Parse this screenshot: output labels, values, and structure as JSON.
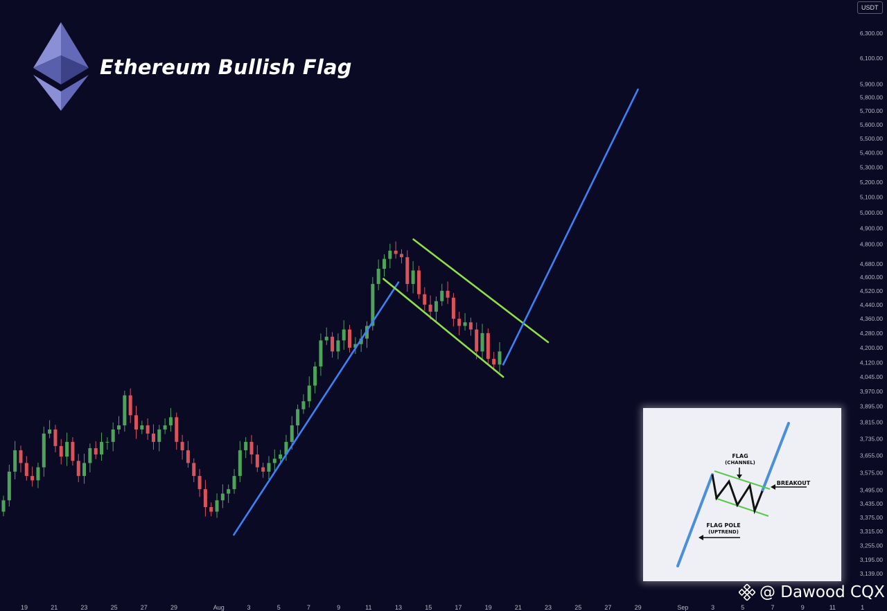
{
  "title": "Ethereum Bullish Flag",
  "currency": "USDT",
  "watermark": "@ Dawood CQX",
  "colors": {
    "background": "#0b0a24",
    "bull_candle": "#4ea35a",
    "bear_candle": "#d9535a",
    "flag_pole": "#3b82f6",
    "flag_channel": "#8ee04a"
  },
  "icons": {
    "logo": "ethereum-logo-icon",
    "watermark": "binance-logo-icon"
  },
  "inset": {
    "flag_label": "FLAG",
    "channel_label": "(CHANNEL)",
    "breakout_label": "BREAKOUT",
    "pole_label": "FLAG POLE",
    "uptrend_label": "(UPTREND)"
  },
  "chart_data": {
    "type": "candlestick",
    "y_axis_ticks": [
      "6,300.00",
      "6,100.00",
      "5,900.00",
      "5,800.00",
      "5,700.00",
      "5,600.00",
      "5,500.00",
      "5,400.00",
      "5,300.00",
      "5,200.00",
      "5,100.00",
      "5,000.00",
      "4,900.00",
      "4,800.00",
      "4,680.00",
      "4,600.00",
      "4,520.00",
      "4,440.00",
      "4,360.00",
      "4,280.00",
      "4,200.00",
      "4,120.00",
      "4,045.00",
      "3,970.00",
      "3,895.00",
      "3,815.00",
      "3,735.00",
      "3,655.00",
      "3,575.00",
      "3,495.00",
      "3,435.00",
      "3,375.00",
      "3,315.00",
      "3,255.00",
      "3,195.00",
      "3,139.00"
    ],
    "x_axis_ticks": [
      "19",
      "21",
      "23",
      "25",
      "27",
      "29",
      "Aug",
      "3",
      "5",
      "7",
      "9",
      "11",
      "13",
      "15",
      "17",
      "19",
      "21",
      "23",
      "25",
      "27",
      "29",
      "Sep",
      "3",
      "5",
      "7",
      "9",
      "11",
      "1"
    ],
    "y_range": [
      3100,
      6400
    ],
    "y_scale": "log",
    "candles": [
      3450,
      3580,
      3680,
      3620,
      3560,
      3540,
      3600,
      3760,
      3780,
      3700,
      3650,
      3720,
      3630,
      3560,
      3620,
      3690,
      3660,
      3720,
      3720,
      3780,
      3800,
      3950,
      3850,
      3780,
      3800,
      3760,
      3720,
      3780,
      3800,
      3840,
      3720,
      3680,
      3620,
      3560,
      3500,
      3420,
      3400,
      3450,
      3480,
      3500,
      3560,
      3680,
      3720,
      3660,
      3600,
      3580,
      3620,
      3640,
      3660,
      3720,
      3800,
      3880,
      3920,
      4000,
      4100,
      4240,
      4260,
      4180,
      4240,
      4300,
      4200,
      4220,
      4250,
      4320,
      4560,
      4650,
      4710,
      4760,
      4740,
      4720,
      4560,
      4640,
      4500,
      4440,
      4400,
      4460,
      4520,
      4480,
      4360,
      4320,
      4340,
      4300,
      4180,
      4280,
      4140,
      4110,
      4180
    ],
    "annotations": [
      {
        "type": "flag_pole",
        "from": [
          "Aug 2",
          3300
        ],
        "to": [
          "Aug 13",
          4570
        ]
      },
      {
        "type": "flag_channel_upper",
        "from": [
          "Aug 14",
          4830
        ],
        "to": [
          "Aug 23",
          4230
        ]
      },
      {
        "type": "flag_channel_lower",
        "from": [
          "Aug 12",
          4590
        ],
        "to": [
          "Aug 20",
          4045
        ]
      },
      {
        "type": "breakout_target",
        "from": [
          "Aug 20",
          4110
        ],
        "to": [
          "Aug 29",
          5860
        ]
      }
    ]
  }
}
